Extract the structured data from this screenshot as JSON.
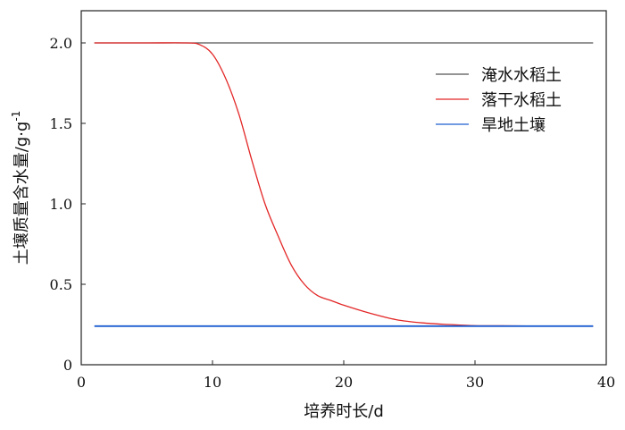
{
  "chart_data": {
    "type": "line",
    "xlabel": "培养时长/d",
    "ylabel": "土壤质量含水量/g·g",
    "ylabel_sup": "-1",
    "xlim": [
      0,
      40
    ],
    "ylim": [
      0,
      2.2
    ],
    "xticks": [
      0,
      10,
      20,
      30,
      40
    ],
    "xtick_labels": [
      "0",
      "10",
      "20",
      "30",
      "40"
    ],
    "yticks": [
      0,
      0.5,
      1.0,
      1.5,
      2.0
    ],
    "ytick_labels": [
      "0",
      "0.5",
      "1.0",
      "1.5",
      "2.0"
    ],
    "grid": false,
    "legend_position": "top-right",
    "series": [
      {
        "name": "淹水水稻土",
        "color": "#555555",
        "x": [
          1,
          39
        ],
        "y": [
          2.0,
          2.0
        ]
      },
      {
        "name": "落干水稻土",
        "color": "#e32626",
        "x": [
          1,
          5,
          8,
          9,
          10,
          11,
          12,
          13,
          14,
          15,
          16,
          17,
          18,
          19,
          20,
          22,
          24,
          26,
          28,
          30,
          32,
          35,
          39
        ],
        "y": [
          2.0,
          2.0,
          2.0,
          1.99,
          1.93,
          1.78,
          1.56,
          1.27,
          1.0,
          0.8,
          0.62,
          0.5,
          0.43,
          0.4,
          0.37,
          0.32,
          0.28,
          0.26,
          0.25,
          0.243,
          0.242,
          0.24,
          0.24
        ]
      },
      {
        "name": "旱地土壤",
        "color": "#1f5fd0",
        "x": [
          1,
          39
        ],
        "y": [
          0.24,
          0.24
        ]
      }
    ]
  }
}
